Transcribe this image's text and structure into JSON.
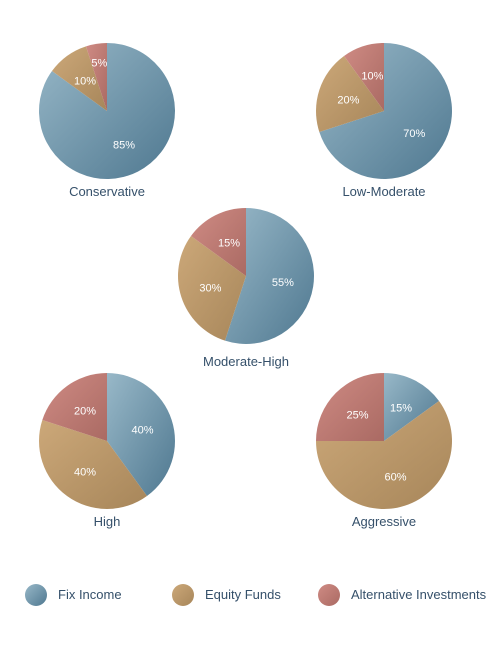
{
  "colors": {
    "fix_income": {
      "light": "#98b8c8",
      "dark": "#4f7890"
    },
    "equity_funds": {
      "light": "#cca879",
      "dark": "#a7865a"
    },
    "alternative_investments": {
      "light": "#cf8b84",
      "dark": "#aa6a63"
    },
    "label_text": "#35506a"
  },
  "legend": {
    "items": [
      {
        "key": "fix_income",
        "label": "Fix Income"
      },
      {
        "key": "equity_funds",
        "label": "Equity Funds"
      },
      {
        "key": "alternative_investments",
        "label": "Alternative Investments"
      }
    ]
  },
  "chart_data": [
    {
      "type": "pie",
      "title": "Conservative",
      "slices": [
        {
          "key": "fix_income",
          "value": 85,
          "label": "85%"
        },
        {
          "key": "equity_funds",
          "value": 10,
          "label": "10%"
        },
        {
          "key": "alternative_investments",
          "value": 5,
          "label": "5%"
        }
      ]
    },
    {
      "type": "pie",
      "title": "Low-Moderate",
      "slices": [
        {
          "key": "fix_income",
          "value": 70,
          "label": "70%"
        },
        {
          "key": "equity_funds",
          "value": 20,
          "label": "20%"
        },
        {
          "key": "alternative_investments",
          "value": 10,
          "label": "10%"
        }
      ]
    },
    {
      "type": "pie",
      "title": "Moderate-High",
      "slices": [
        {
          "key": "fix_income",
          "value": 55,
          "label": "55%"
        },
        {
          "key": "equity_funds",
          "value": 30,
          "label": "30%"
        },
        {
          "key": "alternative_investments",
          "value": 15,
          "label": "15%"
        }
      ]
    },
    {
      "type": "pie",
      "title": "High",
      "slices": [
        {
          "key": "fix_income",
          "value": 40,
          "label": "40%"
        },
        {
          "key": "equity_funds",
          "value": 40,
          "label": "40%"
        },
        {
          "key": "alternative_investments",
          "value": 20,
          "label": "20%"
        }
      ]
    },
    {
      "type": "pie",
      "title": "Aggressive",
      "slices": [
        {
          "key": "fix_income",
          "value": 15,
          "label": "15%"
        },
        {
          "key": "equity_funds",
          "value": 60,
          "label": "60%"
        },
        {
          "key": "alternative_investments",
          "value": 25,
          "label": "25%"
        }
      ]
    }
  ]
}
